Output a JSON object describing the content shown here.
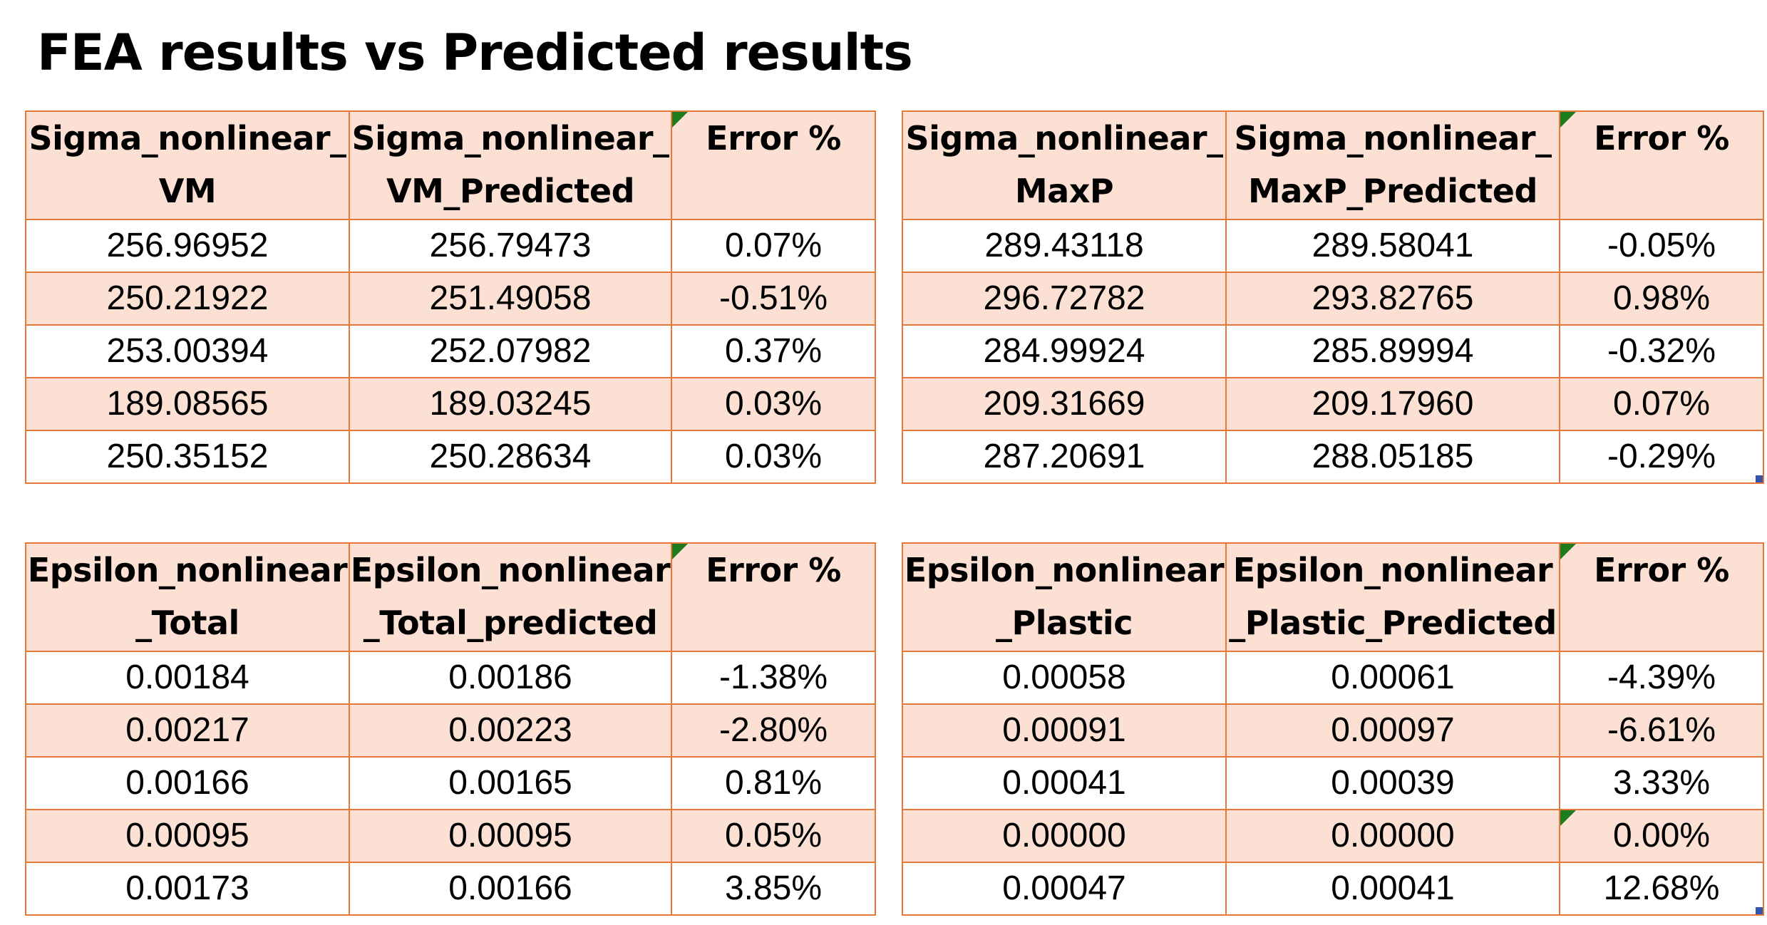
{
  "title": "FEA results vs Predicted results",
  "colors": {
    "header_fill": "#fbe0d3",
    "border": "#e8773a",
    "comment_marker": "#1e7b1e",
    "selection_handle": "#3355aa"
  },
  "tables": [
    {
      "headers": [
        [
          "Sigma_nonlinear_",
          "VM"
        ],
        [
          "Sigma_nonlinear_",
          "VM_Predicted"
        ],
        [
          "Error %",
          ""
        ]
      ],
      "rows": [
        [
          "256.96952",
          "256.79473",
          "0.07%"
        ],
        [
          "250.21922",
          "251.49058",
          "-0.51%"
        ],
        [
          "253.00394",
          "252.07982",
          "0.37%"
        ],
        [
          "189.08565",
          "189.03245",
          "0.03%"
        ],
        [
          "250.35152",
          "250.28634",
          "0.03%"
        ]
      ]
    },
    {
      "headers": [
        [
          "Sigma_nonlinear_",
          "MaxP"
        ],
        [
          "Sigma_nonlinear_",
          "MaxP_Predicted"
        ],
        [
          "Error %",
          ""
        ]
      ],
      "rows": [
        [
          "289.43118",
          "289.58041",
          "-0.05%"
        ],
        [
          "296.72782",
          "293.82765",
          "0.98%"
        ],
        [
          "284.99924",
          "285.89994",
          "-0.32%"
        ],
        [
          "209.31669",
          "209.17960",
          "0.07%"
        ],
        [
          "287.20691",
          "288.05185",
          "-0.29%"
        ]
      ]
    },
    {
      "headers": [
        [
          "Epsilon_nonlinear",
          "_Total"
        ],
        [
          "Epsilon_nonlinear",
          "_Total_predicted"
        ],
        [
          "Error %",
          ""
        ]
      ],
      "rows": [
        [
          "0.00184",
          "0.00186",
          "-1.38%"
        ],
        [
          "0.00217",
          "0.00223",
          "-2.80%"
        ],
        [
          "0.00166",
          "0.00165",
          "0.81%"
        ],
        [
          "0.00095",
          "0.00095",
          "0.05%"
        ],
        [
          "0.00173",
          "0.00166",
          "3.85%"
        ]
      ]
    },
    {
      "headers": [
        [
          "Epsilon_nonlinear",
          "_Plastic"
        ],
        [
          "Epsilon_nonlinear",
          "_Plastic_Predicted"
        ],
        [
          "Error %",
          ""
        ]
      ],
      "rows": [
        [
          "0.00058",
          "0.00061",
          "-4.39%"
        ],
        [
          "0.00091",
          "0.00097",
          "-6.61%"
        ],
        [
          "0.00041",
          "0.00039",
          "3.33%"
        ],
        [
          "0.00000",
          "0.00000",
          "0.00%"
        ],
        [
          "0.00047",
          "0.00041",
          "12.68%"
        ]
      ]
    }
  ]
}
